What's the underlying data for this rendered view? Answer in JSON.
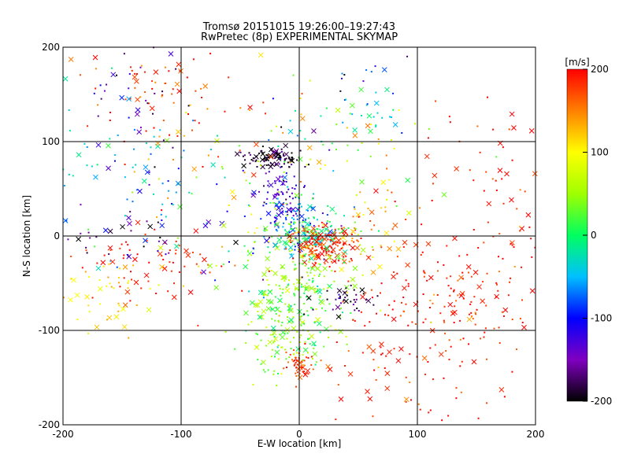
{
  "chart_data": {
    "type": "scatter",
    "title": "Tromsø 20151015  19:26:00–19:27:43",
    "subtitle": "RwPretec (8p) EXPERIMENTAL SKYMAP",
    "xlabel": "E-W location [km]",
    "ylabel": "N-S location [km]",
    "xlim": [
      -200,
      200
    ],
    "ylim": [
      -200,
      200
    ],
    "xticks": [
      "-200",
      "-100",
      "0",
      "100",
      "200"
    ],
    "yticks": [
      "-200",
      "-100",
      "0",
      "100",
      "200"
    ],
    "grid": true,
    "colorbar": {
      "label": "[m/s]",
      "min": -200,
      "max": 200,
      "ticks": [
        "-200",
        "-100",
        "0",
        "100",
        "200"
      ]
    },
    "clusters": [
      {
        "x": -22,
        "y": 82,
        "sx": 12,
        "sy": 5,
        "v": -190,
        "vs": 15,
        "n": 90
      },
      {
        "x": -15,
        "y": 40,
        "sx": 10,
        "sy": 18,
        "v": -120,
        "vs": 25,
        "n": 90
      },
      {
        "x": 5,
        "y": 5,
        "sx": 18,
        "sy": 14,
        "v": -30,
        "vs": 50,
        "n": 200
      },
      {
        "x": 20,
        "y": -10,
        "sx": 15,
        "sy": 10,
        "v": 190,
        "vs": 25,
        "n": 150
      },
      {
        "x": 0,
        "y": -60,
        "sx": 22,
        "sy": 28,
        "v": 40,
        "vs": 30,
        "n": 220
      },
      {
        "x": -10,
        "y": -110,
        "sx": 18,
        "sy": 18,
        "v": 40,
        "vs": 30,
        "n": 90
      },
      {
        "x": 0,
        "y": -135,
        "sx": 6,
        "sy": 8,
        "v": 180,
        "vs": 20,
        "n": 50
      },
      {
        "x": 40,
        "y": -65,
        "sx": 15,
        "sy": 10,
        "v": -180,
        "vs": 30,
        "n": 40
      },
      {
        "x": 115,
        "y": -60,
        "sx": 35,
        "sy": 30,
        "v": 190,
        "vs": 20,
        "n": 140
      },
      {
        "x": 100,
        "y": -140,
        "sx": 45,
        "sy": 30,
        "v": 190,
        "vs": 20,
        "n": 70
      },
      {
        "x": -130,
        "y": 155,
        "sx": 30,
        "sy": 25,
        "v": 180,
        "vs": 25,
        "n": 60
      },
      {
        "x": -140,
        "y": 145,
        "sx": 30,
        "sy": 30,
        "v": -160,
        "vs": 30,
        "n": 30
      },
      {
        "x": -150,
        "y": 70,
        "sx": 35,
        "sy": 40,
        "v": -60,
        "vs": 50,
        "n": 80
      },
      {
        "x": -120,
        "y": -30,
        "sx": 35,
        "sy": 20,
        "v": 190,
        "vs": 20,
        "n": 70
      },
      {
        "x": -160,
        "y": -60,
        "sx": 25,
        "sy": 20,
        "v": 110,
        "vs": 20,
        "n": 50
      },
      {
        "x": -150,
        "y": 10,
        "sx": 30,
        "sy": 20,
        "v": -150,
        "vs": 40,
        "n": 30
      },
      {
        "x": 40,
        "y": 80,
        "sx": 40,
        "sy": 40,
        "v": 60,
        "vs": 60,
        "n": 70
      },
      {
        "x": 140,
        "y": 70,
        "sx": 40,
        "sy": 40,
        "v": 190,
        "vs": 20,
        "n": 30
      },
      {
        "x": 175,
        "y": 0,
        "sx": 20,
        "sy": 60,
        "v": 190,
        "vs": 20,
        "n": 50
      },
      {
        "x": 60,
        "y": 0,
        "sx": 20,
        "sy": 30,
        "v": 150,
        "vs": 50,
        "n": 50
      },
      {
        "x": -60,
        "y": 20,
        "sx": 40,
        "sy": 50,
        "v": 0,
        "vs": 100,
        "n": 80
      },
      {
        "x": 60,
        "y": 130,
        "sx": 15,
        "sy": 10,
        "v": -40,
        "vs": 20,
        "n": 20
      },
      {
        "x": -70,
        "y": 120,
        "sx": 40,
        "sy": 40,
        "v": 160,
        "vs": 40,
        "n": 40
      },
      {
        "x": 20,
        "y": 160,
        "sx": 40,
        "sy": 30,
        "v": -80,
        "vs": 80,
        "n": 25
      }
    ]
  }
}
